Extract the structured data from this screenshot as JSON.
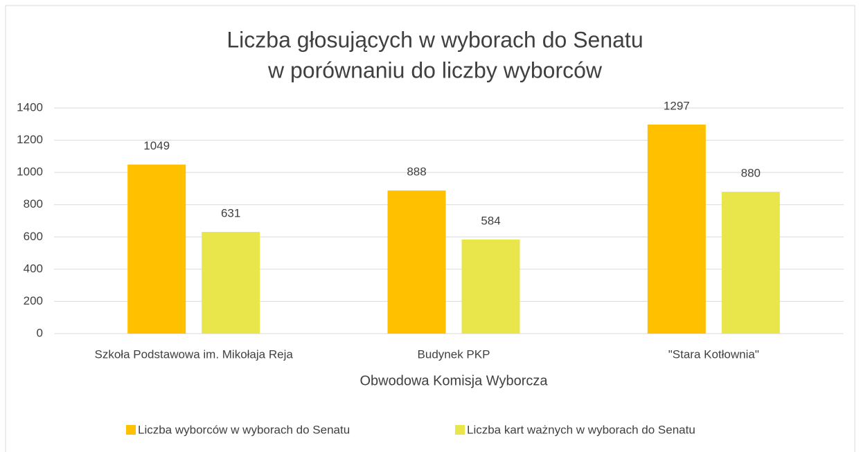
{
  "chart_data": {
    "type": "bar",
    "title": [
      "Liczba głosujących w wyborach do Senatu",
      "w porównaniu do liczby wyborców"
    ],
    "x_label": "Obwodowa Komisja Wyborcza",
    "categories": [
      "Szkoła Podstawowa im. Mikołaja Reja",
      "Budynek PKP",
      "\"Stara Kotłownia\""
    ],
    "series": [
      {
        "name": "Liczba wyborców w wyborach do Senatu",
        "color": "#ffc000",
        "values": [
          1049,
          888,
          1297
        ]
      },
      {
        "name": "Liczba kart ważnych w wyborach do Senatu",
        "color": "#e9e64c",
        "values": [
          631,
          584,
          880
        ]
      }
    ],
    "ylim": [
      0,
      1400
    ],
    "yticks": [
      0,
      200,
      400,
      600,
      800,
      1000,
      1200,
      1400
    ],
    "grid": true,
    "legend": "bottom"
  }
}
